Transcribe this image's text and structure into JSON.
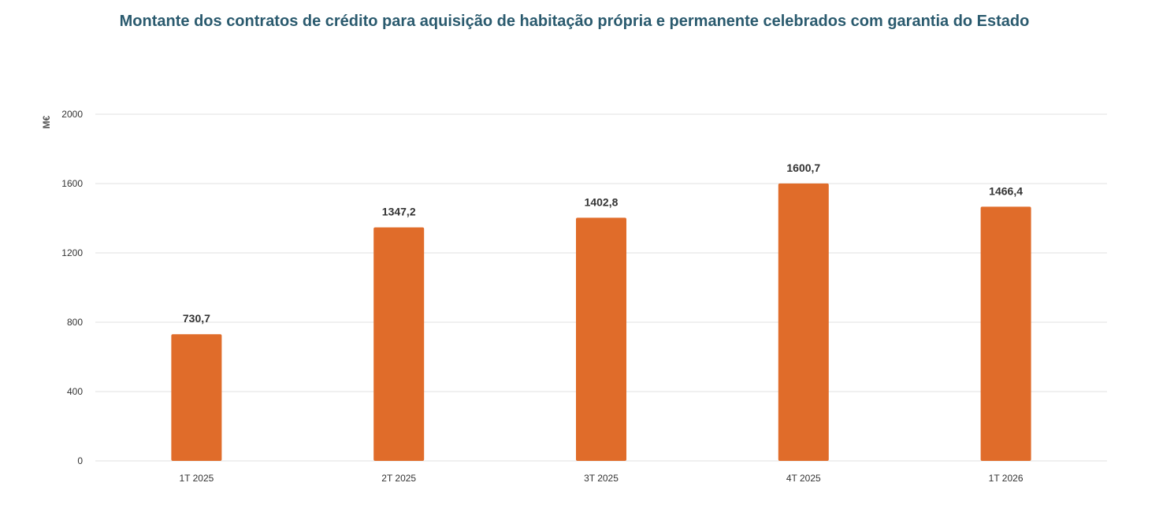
{
  "chart_data": {
    "type": "bar",
    "title": "Montante dos contratos de crédito para aquisição de habitação própria e permanente celebrados com garantia do Estado",
    "ylabel": "M€",
    "xlabel": "",
    "categories": [
      "1T 2025",
      "2T 2025",
      "3T 2025",
      "4T 2025",
      "1T 2026"
    ],
    "values": [
      730.7,
      1347.2,
      1402.8,
      1600.7,
      1466.4
    ],
    "value_labels": [
      "730,7",
      "1347,2",
      "1402,8",
      "1600,7",
      "1466,4"
    ],
    "yticks": [
      0,
      400,
      800,
      1200,
      1600,
      2000
    ],
    "ylim": [
      0,
      2000
    ],
    "grid": true,
    "bar_color": "#e06c2a"
  }
}
